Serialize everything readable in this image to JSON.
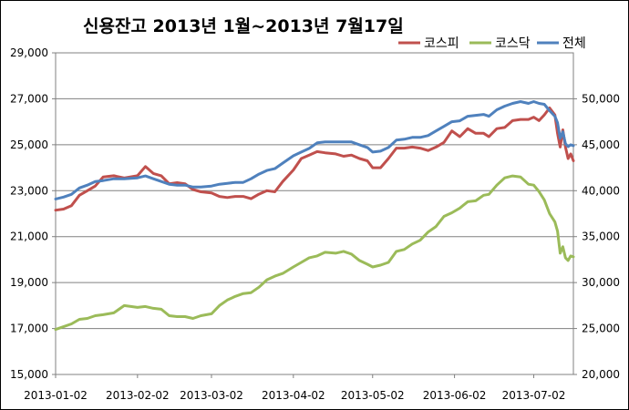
{
  "chart_data": {
    "type": "line",
    "title": "신용잔고 2013년 1월~2013년 7월17일",
    "xlabel": "",
    "ylabel": "",
    "x_ticks": [
      "2013-01-02",
      "2013-02-02",
      "2013-03-02",
      "2013-04-02",
      "2013-05-02",
      "2013-06-02",
      "2013-07-02"
    ],
    "y_left": {
      "range": [
        15000,
        29000
      ],
      "ticks": [
        "15,000",
        "17,000",
        "19,000",
        "21,000",
        "23,000",
        "25,000",
        "27,000",
        "29,000"
      ]
    },
    "y_right": {
      "range": [
        20000,
        55000
      ],
      "ticks": [
        "20,000",
        "25,000",
        "30,000",
        "35,000",
        "40,000",
        "45,000",
        "50,000"
      ]
    },
    "grid": "horizontal",
    "legend_position": "top-right",
    "x_range": [
      "2013-01-02",
      "2013-07-17"
    ],
    "series": [
      {
        "name": "코스피",
        "axis": "left",
        "color": "#c0504d",
        "points": [
          [
            "2013-01-02",
            22150
          ],
          [
            "2013-01-05",
            22200
          ],
          [
            "2013-01-08",
            22350
          ],
          [
            "2013-01-11",
            22800
          ],
          [
            "2013-01-14",
            23000
          ],
          [
            "2013-01-17",
            23200
          ],
          [
            "2013-01-20",
            23600
          ],
          [
            "2013-01-24",
            23650
          ],
          [
            "2013-01-28",
            23550
          ],
          [
            "2013-02-02",
            23650
          ],
          [
            "2013-02-05",
            24050
          ],
          [
            "2013-02-08",
            23750
          ],
          [
            "2013-02-11",
            23650
          ],
          [
            "2013-02-14",
            23300
          ],
          [
            "2013-02-17",
            23350
          ],
          [
            "2013-02-20",
            23300
          ],
          [
            "2013-02-23",
            23050
          ],
          [
            "2013-02-26",
            22950
          ],
          [
            "2013-03-02",
            22900
          ],
          [
            "2013-03-05",
            22750
          ],
          [
            "2013-03-08",
            22700
          ],
          [
            "2013-03-11",
            22750
          ],
          [
            "2013-03-14",
            22750
          ],
          [
            "2013-03-17",
            22650
          ],
          [
            "2013-03-20",
            22850
          ],
          [
            "2013-03-23",
            23000
          ],
          [
            "2013-03-26",
            22950
          ],
          [
            "2013-03-29",
            23400
          ],
          [
            "2013-04-02",
            23900
          ],
          [
            "2013-04-05",
            24400
          ],
          [
            "2013-04-08",
            24550
          ],
          [
            "2013-04-11",
            24700
          ],
          [
            "2013-04-14",
            24650
          ],
          [
            "2013-04-18",
            24600
          ],
          [
            "2013-04-21",
            24500
          ],
          [
            "2013-04-24",
            24550
          ],
          [
            "2013-04-27",
            24400
          ],
          [
            "2013-04-30",
            24300
          ],
          [
            "2013-05-02",
            24000
          ],
          [
            "2013-05-05",
            24000
          ],
          [
            "2013-05-08",
            24400
          ],
          [
            "2013-05-11",
            24850
          ],
          [
            "2013-05-14",
            24850
          ],
          [
            "2013-05-17",
            24900
          ],
          [
            "2013-05-20",
            24850
          ],
          [
            "2013-05-23",
            24750
          ],
          [
            "2013-05-26",
            24900
          ],
          [
            "2013-05-29",
            25100
          ],
          [
            "2013-06-01",
            25600
          ],
          [
            "2013-06-04",
            25350
          ],
          [
            "2013-06-07",
            25700
          ],
          [
            "2013-06-10",
            25500
          ],
          [
            "2013-06-13",
            25500
          ],
          [
            "2013-06-15",
            25350
          ],
          [
            "2013-06-18",
            25700
          ],
          [
            "2013-06-21",
            25750
          ],
          [
            "2013-06-24",
            26050
          ],
          [
            "2013-06-27",
            26100
          ],
          [
            "2013-06-30",
            26100
          ],
          [
            "2013-07-02",
            26200
          ],
          [
            "2013-07-04",
            26050
          ],
          [
            "2013-07-06",
            26300
          ],
          [
            "2013-07-08",
            26600
          ],
          [
            "2013-07-10",
            26300
          ],
          [
            "2013-07-11",
            25500
          ],
          [
            "2013-07-12",
            24900
          ],
          [
            "2013-07-13",
            25650
          ],
          [
            "2013-07-14",
            24900
          ],
          [
            "2013-07-15",
            24400
          ],
          [
            "2013-07-16",
            24600
          ],
          [
            "2013-07-17",
            24300
          ]
        ]
      },
      {
        "name": "코스닥",
        "axis": "right",
        "color": "#9bbb59",
        "points": [
          [
            "2013-01-02",
            24900
          ],
          [
            "2013-01-05",
            25200
          ],
          [
            "2013-01-08",
            25500
          ],
          [
            "2013-01-11",
            26000
          ],
          [
            "2013-01-14",
            26100
          ],
          [
            "2013-01-17",
            26400
          ],
          [
            "2013-01-20",
            26500
          ],
          [
            "2013-01-24",
            26700
          ],
          [
            "2013-01-28",
            27500
          ],
          [
            "2013-02-02",
            27300
          ],
          [
            "2013-02-05",
            27400
          ],
          [
            "2013-02-08",
            27200
          ],
          [
            "2013-02-11",
            27100
          ],
          [
            "2013-02-14",
            26400
          ],
          [
            "2013-02-17",
            26300
          ],
          [
            "2013-02-20",
            26300
          ],
          [
            "2013-02-23",
            26100
          ],
          [
            "2013-02-26",
            26400
          ],
          [
            "2013-03-02",
            26600
          ],
          [
            "2013-03-05",
            27500
          ],
          [
            "2013-03-08",
            28100
          ],
          [
            "2013-03-11",
            28500
          ],
          [
            "2013-03-14",
            28800
          ],
          [
            "2013-03-17",
            28900
          ],
          [
            "2013-03-20",
            29500
          ],
          [
            "2013-03-23",
            30300
          ],
          [
            "2013-03-26",
            30700
          ],
          [
            "2013-03-29",
            31000
          ],
          [
            "2013-04-02",
            31700
          ],
          [
            "2013-04-05",
            32200
          ],
          [
            "2013-04-08",
            32700
          ],
          [
            "2013-04-11",
            32900
          ],
          [
            "2013-04-14",
            33300
          ],
          [
            "2013-04-18",
            33200
          ],
          [
            "2013-04-21",
            33400
          ],
          [
            "2013-04-24",
            33100
          ],
          [
            "2013-04-27",
            32400
          ],
          [
            "2013-04-30",
            32000
          ],
          [
            "2013-05-02",
            31700
          ],
          [
            "2013-05-05",
            31900
          ],
          [
            "2013-05-08",
            32200
          ],
          [
            "2013-05-11",
            33400
          ],
          [
            "2013-05-14",
            33600
          ],
          [
            "2013-05-17",
            34200
          ],
          [
            "2013-05-20",
            34600
          ],
          [
            "2013-05-23",
            35500
          ],
          [
            "2013-05-26",
            36100
          ],
          [
            "2013-05-29",
            37200
          ],
          [
            "2013-06-01",
            37600
          ],
          [
            "2013-06-04",
            38100
          ],
          [
            "2013-06-07",
            38800
          ],
          [
            "2013-06-10",
            38900
          ],
          [
            "2013-06-13",
            39500
          ],
          [
            "2013-06-15",
            39600
          ],
          [
            "2013-06-18",
            40600
          ],
          [
            "2013-06-21",
            41400
          ],
          [
            "2013-06-24",
            41600
          ],
          [
            "2013-06-27",
            41500
          ],
          [
            "2013-06-30",
            40700
          ],
          [
            "2013-07-02",
            40600
          ],
          [
            "2013-07-04",
            39900
          ],
          [
            "2013-07-06",
            39000
          ],
          [
            "2013-07-08",
            37500
          ],
          [
            "2013-07-10",
            36600
          ],
          [
            "2013-07-11",
            35600
          ],
          [
            "2013-07-12",
            33200
          ],
          [
            "2013-07-13",
            33900
          ],
          [
            "2013-07-14",
            32700
          ],
          [
            "2013-07-15",
            32400
          ],
          [
            "2013-07-16",
            32900
          ],
          [
            "2013-07-17",
            32800
          ]
        ]
      },
      {
        "name": "전체",
        "axis": "right",
        "color": "#4f81bd",
        "points": [
          [
            "2013-01-02",
            39100
          ],
          [
            "2013-01-05",
            39300
          ],
          [
            "2013-01-08",
            39600
          ],
          [
            "2013-01-11",
            40300
          ],
          [
            "2013-01-14",
            40600
          ],
          [
            "2013-01-17",
            41000
          ],
          [
            "2013-01-20",
            41100
          ],
          [
            "2013-01-24",
            41300
          ],
          [
            "2013-01-28",
            41300
          ],
          [
            "2013-02-02",
            41400
          ],
          [
            "2013-02-05",
            41600
          ],
          [
            "2013-02-08",
            41300
          ],
          [
            "2013-02-11",
            41000
          ],
          [
            "2013-02-14",
            40700
          ],
          [
            "2013-02-17",
            40600
          ],
          [
            "2013-02-20",
            40600
          ],
          [
            "2013-02-23",
            40400
          ],
          [
            "2013-02-26",
            40400
          ],
          [
            "2013-03-02",
            40500
          ],
          [
            "2013-03-05",
            40700
          ],
          [
            "2013-03-08",
            40800
          ],
          [
            "2013-03-11",
            40900
          ],
          [
            "2013-03-14",
            40900
          ],
          [
            "2013-03-17",
            41300
          ],
          [
            "2013-03-20",
            41800
          ],
          [
            "2013-03-23",
            42200
          ],
          [
            "2013-03-26",
            42400
          ],
          [
            "2013-03-29",
            43000
          ],
          [
            "2013-04-02",
            43800
          ],
          [
            "2013-04-05",
            44200
          ],
          [
            "2013-04-08",
            44600
          ],
          [
            "2013-04-11",
            45200
          ],
          [
            "2013-04-14",
            45300
          ],
          [
            "2013-04-18",
            45300
          ],
          [
            "2013-04-21",
            45300
          ],
          [
            "2013-04-24",
            45300
          ],
          [
            "2013-04-27",
            45000
          ],
          [
            "2013-04-30",
            44700
          ],
          [
            "2013-05-02",
            44200
          ],
          [
            "2013-05-05",
            44300
          ],
          [
            "2013-05-08",
            44700
          ],
          [
            "2013-05-11",
            45500
          ],
          [
            "2013-05-14",
            45600
          ],
          [
            "2013-05-17",
            45800
          ],
          [
            "2013-05-20",
            45800
          ],
          [
            "2013-05-23",
            46000
          ],
          [
            "2013-05-26",
            46500
          ],
          [
            "2013-05-29",
            47000
          ],
          [
            "2013-06-01",
            47500
          ],
          [
            "2013-06-04",
            47600
          ],
          [
            "2013-06-07",
            48100
          ],
          [
            "2013-06-10",
            48200
          ],
          [
            "2013-06-13",
            48300
          ],
          [
            "2013-06-15",
            48100
          ],
          [
            "2013-06-18",
            48800
          ],
          [
            "2013-06-21",
            49200
          ],
          [
            "2013-06-24",
            49500
          ],
          [
            "2013-06-27",
            49700
          ],
          [
            "2013-06-30",
            49500
          ],
          [
            "2013-07-02",
            49700
          ],
          [
            "2013-07-04",
            49500
          ],
          [
            "2013-07-06",
            49400
          ],
          [
            "2013-07-08",
            48700
          ],
          [
            "2013-07-10",
            48100
          ],
          [
            "2013-07-11",
            47400
          ],
          [
            "2013-07-12",
            45700
          ],
          [
            "2013-07-13",
            46400
          ],
          [
            "2013-07-14",
            45100
          ],
          [
            "2013-07-15",
            44800
          ],
          [
            "2013-07-16",
            45000
          ],
          [
            "2013-07-17",
            44900
          ]
        ]
      }
    ]
  }
}
